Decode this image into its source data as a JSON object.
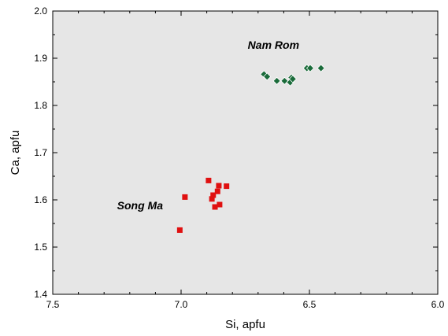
{
  "chart_data": {
    "type": "scatter",
    "xlabel": "Si, apfu",
    "ylabel": "Ca, apfu",
    "xlim": [
      7.5,
      6.0
    ],
    "ylim": [
      1.4,
      2.0
    ],
    "x_reversed": true,
    "x_ticks": [
      7.5,
      7.0,
      6.5,
      6.0
    ],
    "x_tick_labels": [
      "7.5",
      "7.0",
      "6.5",
      "6.0"
    ],
    "y_ticks": [
      1.4,
      1.5,
      1.6,
      1.7,
      1.8,
      1.9,
      2.0
    ],
    "y_tick_labels": [
      "1.4",
      "1.5",
      "1.6",
      "1.7",
      "1.8",
      "1.9",
      "2.0"
    ],
    "grid": false,
    "plot_background": "#e6e6e6",
    "series": [
      {
        "marker": "square",
        "color": "#e01010",
        "points": [
          {
            "x": 7.005,
            "y": 1.536
          },
          {
            "x": 6.985,
            "y": 1.606
          },
          {
            "x": 6.893,
            "y": 1.641
          },
          {
            "x": 6.88,
            "y": 1.602
          },
          {
            "x": 6.875,
            "y": 1.61
          },
          {
            "x": 6.868,
            "y": 1.585
          },
          {
            "x": 6.858,
            "y": 1.618
          },
          {
            "x": 6.853,
            "y": 1.63
          },
          {
            "x": 6.85,
            "y": 1.59
          },
          {
            "x": 6.823,
            "y": 1.629
          }
        ]
      },
      {
        "marker": "diamond",
        "color": "#1a6b3a",
        "points": [
          {
            "x": 6.677,
            "y": 1.866
          },
          {
            "x": 6.665,
            "y": 1.861
          },
          {
            "x": 6.627,
            "y": 1.852
          },
          {
            "x": 6.597,
            "y": 1.852
          },
          {
            "x": 6.575,
            "y": 1.849
          },
          {
            "x": 6.57,
            "y": 1.859
          },
          {
            "x": 6.565,
            "y": 1.856
          },
          {
            "x": 6.51,
            "y": 1.879
          },
          {
            "x": 6.497,
            "y": 1.879
          },
          {
            "x": 6.455,
            "y": 1.879
          }
        ]
      }
    ],
    "annotations": [
      {
        "text": "Nam Rom",
        "x": 6.64,
        "y": 1.92
      },
      {
        "text": "Song Ma",
        "x": 7.16,
        "y": 1.58
      }
    ]
  }
}
